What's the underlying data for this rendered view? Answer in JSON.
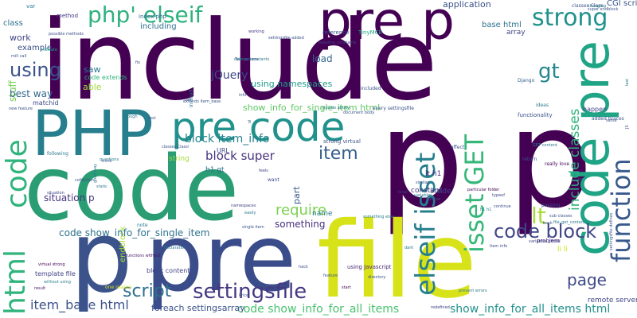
{
  "cloud": {
    "words": [
      {
        "text": "include",
        "color": "#440154"
      },
      {
        "text": "p p",
        "color": "#440154"
      },
      {
        "text": "code",
        "color": "#2a9d74"
      },
      {
        "text": "file",
        "color": "#d8e219"
      },
      {
        "text": "pre",
        "color": "#3a4c8a"
      },
      {
        "text": "p",
        "color": "#3b528b"
      },
      {
        "text": "PHP",
        "color": "#277f8e"
      },
      {
        "text": "pre p",
        "color": "#440154"
      },
      {
        "text": "pre code",
        "color": "#21918c"
      },
      {
        "text": "code pre",
        "color": "#20a486"
      },
      {
        "text": "php' elseif",
        "color": "#2db27d"
      },
      {
        "text": "strong",
        "color": "#20928c"
      },
      {
        "text": "elseif isset",
        "color": "#277f8e"
      },
      {
        "text": "isset GET",
        "color": "#35b779"
      },
      {
        "text": "using",
        "color": "#3b528b"
      },
      {
        "text": "gt",
        "color": "#24868e"
      },
      {
        "text": "code",
        "color": "#2fb47c"
      },
      {
        "text": "html",
        "color": "#2fb47c"
      },
      {
        "text": "function",
        "color": "#38598c"
      },
      {
        "text": "include classes",
        "color": "#2db27d"
      },
      {
        "text": "code block",
        "color": "#404688"
      },
      {
        "text": "lt",
        "color": "#a8db34"
      },
      {
        "text": "settingsfile",
        "color": "#453781"
      },
      {
        "text": "script",
        "color": "#2e6f8e"
      },
      {
        "text": "page",
        "color": "#3f4889"
      },
      {
        "text": "block item_info",
        "color": "#26828e"
      },
      {
        "text": "item",
        "color": "#355f8d"
      },
      {
        "text": "block super",
        "color": "#46337e"
      },
      {
        "text": "require",
        "color": "#7ad151"
      },
      {
        "text": "item_base html",
        "color": "#3b528b"
      },
      {
        "text": "code show_info_for_all_items",
        "color": "#48c16e"
      },
      {
        "text": "show_info_for_all_items html",
        "color": "#21918c"
      },
      {
        "text": "code show_info_for_single_item",
        "color": "#2c728e"
      },
      {
        "text": "something",
        "color": "#46327e"
      },
      {
        "text": "foreach settingsarray",
        "color": "#3b528b"
      },
      {
        "text": "jQuery",
        "color": "#3e4989"
      },
      {
        "text": "best way",
        "color": "#31688e"
      },
      {
        "text": "application",
        "color": "#3b528b"
      },
      {
        "text": "stuff",
        "color": "#75d054"
      },
      {
        "text": "saw",
        "color": "#2a788e"
      },
      {
        "text": "able",
        "color": "#a0da39"
      },
      {
        "text": "load",
        "color": "#31688e"
      },
      {
        "text": "using namespaces",
        "color": "#1f9a8a"
      },
      {
        "text": "class",
        "color": "#2d708e"
      },
      {
        "text": "work",
        "color": "#414487"
      },
      {
        "text": "example",
        "color": "#3b528b"
      },
      {
        "text": "code extends",
        "color": "#32b67a"
      },
      {
        "text": "show_info_for_single_item html",
        "color": "#5ec962"
      },
      {
        "text": "including",
        "color": "#2e6e8e"
      },
      {
        "text": "base html",
        "color": "#2c728e"
      },
      {
        "text": "array",
        "color": "#404688"
      },
      {
        "text": "CGI script",
        "color": "#39558c"
      },
      {
        "text": "situation p",
        "color": "#46337e"
      },
      {
        "text": "endblock",
        "color": "#aadc32"
      },
      {
        "text": "remote server",
        "color": "#414487"
      },
      {
        "text": "li li",
        "color": "#d0e11c"
      },
      {
        "text": "name",
        "color": "#2a788e"
      },
      {
        "text": "constant",
        "color": "#443a83"
      },
      {
        "text": "inside",
        "color": "#3f4889"
      },
      {
        "text": "lt h1",
        "color": "#472d7b"
      },
      {
        "text": "h1 gt",
        "color": "#2e6f8e"
      },
      {
        "text": "string",
        "color": "#a2da37"
      },
      {
        "text": "URL",
        "color": "#3e4a89"
      },
      {
        "text": "matchid",
        "color": "#3e4989"
      },
      {
        "text": "var",
        "color": "#2a788e"
      },
      {
        "text": "method",
        "color": "#443983"
      },
      {
        "text": "index php",
        "color": "#306a8e"
      },
      {
        "text": "reference",
        "color": "#3b528b"
      },
      {
        "text": "TinyMCE",
        "color": "#21a685"
      },
      {
        "text": "block content",
        "color": "#414487"
      },
      {
        "text": "template file",
        "color": "#414487"
      },
      {
        "text": "functions without",
        "color": "#471063"
      },
      {
        "text": "item info",
        "color": "#3e4989"
      },
      {
        "text": "problem",
        "color": "#482979"
      },
      {
        "text": "using Javascript",
        "color": "#482878"
      },
      {
        "text": "part",
        "color": "#37598c"
      },
      {
        "text": "want",
        "color": "#3f4788"
      },
      {
        "text": "strong virtual",
        "color": "#3b528b"
      },
      {
        "text": "virtual strong",
        "color": "#440154"
      },
      {
        "text": "without using",
        "color": "#27808e"
      },
      {
        "text": "result",
        "color": "#471063"
      },
      {
        "text": "one reason",
        "color": "#d5e21a"
      },
      {
        "text": "Django",
        "color": "#355f8d"
      },
      {
        "text": "passing",
        "color": "#3b528b"
      },
      {
        "text": "included",
        "color": "#3b528b"
      },
      {
        "text": "following",
        "color": "#2a788e"
      },
      {
        "text": "happen",
        "color": "#414487"
      },
      {
        "text": "added braces",
        "color": "#3b528b"
      },
      {
        "text": "ideas",
        "color": "#2a788e"
      },
      {
        "text": "new feature",
        "color": "#3b528b"
      },
      {
        "text": "indicate",
        "color": "#1f9e89"
      },
      {
        "text": "settingsfile added",
        "color": "#3b528b"
      },
      {
        "text": "working",
        "color": "#453781"
      },
      {
        "text": "isolating constants",
        "color": "#414487"
      },
      {
        "text": "possible methods",
        "color": "#3b528b"
      },
      {
        "text": "include ability",
        "color": "#2a788e"
      },
      {
        "text": "every settingsfile",
        "color": "#3b528b"
      },
      {
        "text": "document body",
        "color": "#3b528b"
      },
      {
        "text": "start",
        "color": "#440154"
      },
      {
        "text": "redefined",
        "color": "#414487"
      },
      {
        "text": "prevent errors",
        "color": "#2a788e"
      },
      {
        "text": "something else",
        "color": "#2a788e"
      },
      {
        "text": "sub classes",
        "color": "#3b528b"
      },
      {
        "text": "particular folder",
        "color": "#440154"
      },
      {
        "text": "variables global",
        "color": "#414487"
      },
      {
        "text": "single item",
        "color": "#3b528b"
      },
      {
        "text": "feels",
        "color": "#414487"
      },
      {
        "text": "affect",
        "color": "#3b528b"
      },
      {
        "text": "return",
        "color": "#3b528b"
      },
      {
        "text": "really love",
        "color": "#440154"
      },
      {
        "text": "classes Class",
        "color": "#3b528b"
      },
      {
        "text": "super endblock",
        "color": "#3b528b"
      },
      {
        "text": "defines constants",
        "color": "#2a788e"
      },
      {
        "text": "Two options",
        "color": "#3b528b"
      },
      {
        "text": "classes Class!",
        "color": "#3b528b"
      },
      {
        "text": "settingsfile defines",
        "color": "#3b528b"
      },
      {
        "text": "situation",
        "color": "#414487"
      },
      {
        "text": "static",
        "color": "#2a788e"
      },
      {
        "text": "directory",
        "color": "#3b528b"
      },
      {
        "text": "through",
        "color": "#2a788e"
      },
      {
        "text": "collection",
        "color": "#3b528b"
      },
      {
        "text": "good way",
        "color": "#2a788e"
      },
      {
        "text": "local",
        "color": "#414487"
      },
      {
        "text": "resolve",
        "color": "#3b528b"
      },
      {
        "text": "namespaces",
        "color": "#414487"
      },
      {
        "text": "easily",
        "color": "#2a788e"
      },
      {
        "text": "typeof",
        "color": "#414487"
      },
      {
        "text": "same",
        "color": "#3b528b"
      },
      {
        "text": "JS",
        "color": "#3b528b"
      },
      {
        "text": "note",
        "color": "#2a788e"
      },
      {
        "text": "back",
        "color": "#3b528b"
      },
      {
        "text": "fix",
        "color": "#3b528b"
      },
      {
        "text": "declaration",
        "color": "#2a788e"
      },
      {
        "text": "mill call",
        "color": "#3b528b"
      },
      {
        "text": "feature",
        "color": "#3b528b"
      },
      {
        "text": "variables",
        "color": "#2a788e"
      },
      {
        "text": "Price",
        "color": "#3b528b"
      },
      {
        "text": "h1 h1",
        "color": "#2a788e"
      },
      {
        "text": "continue",
        "color": "#3b528b"
      },
      {
        "text": "GET content",
        "color": "#2a788e"
      },
      {
        "text": "tell",
        "color": "#3b528b"
      },
      {
        "text": "info",
        "color": "#3b528b"
      },
      {
        "text": "instead",
        "color": "#2a788e"
      },
      {
        "text": "rest",
        "color": "#3b528b"
      },
      {
        "text": "hack",
        "color": "#3b528b"
      },
      {
        "text": "dark",
        "color": "#2a788e"
      },
      {
        "text": "extends item_base",
        "color": "#3b528b"
      },
      {
        "text": "one",
        "color": "#3b528b"
      },
      {
        "text": "think",
        "color": "#3b528b"
      },
      {
        "text": "last",
        "color": "#2a788e"
      },
      {
        "text": "br",
        "color": "#3b528b"
      },
      {
        "text": "ol",
        "color": "#3b528b"
      },
      {
        "text": "questions",
        "color": "#2a788e"
      },
      {
        "text": "file_get_contents",
        "color": "#2a788e"
      },
      {
        "text": "similar",
        "color": "#3b528b"
      },
      {
        "text": "changing",
        "color": "#2a788e"
      },
      {
        "text": "functionality",
        "color": "#3b528b"
      }
    ]
  }
}
